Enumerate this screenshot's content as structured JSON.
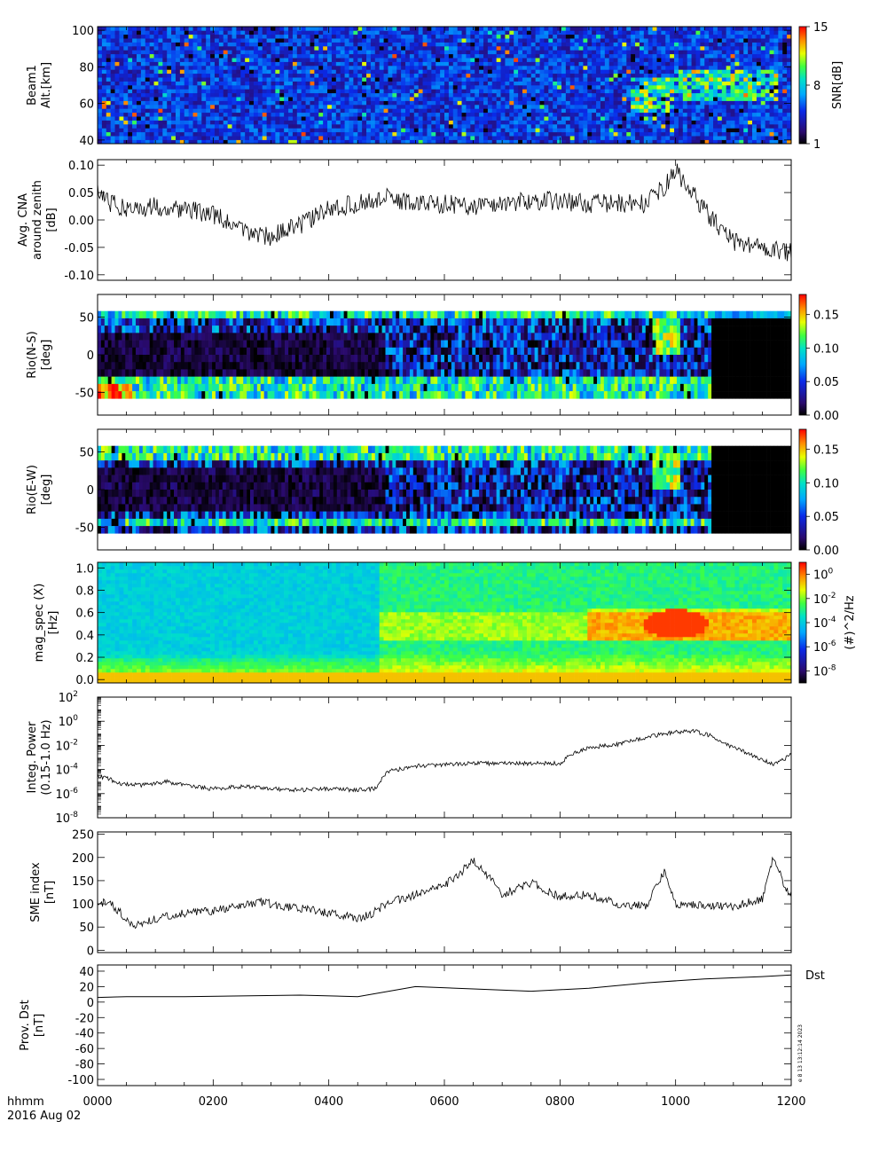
{
  "colors": {
    "heat_bg": "#3a3aa8",
    "rainbow": [
      "#000000",
      "#2a0a6e",
      "#0a2ae8",
      "#00a8ff",
      "#00e0c8",
      "#40ff40",
      "#e8ff00",
      "#ff9000",
      "#ff0000"
    ]
  },
  "time_axis": {
    "ticks": [
      "0000",
      "0200",
      "0400",
      "0600",
      "0800",
      "1000",
      "1200"
    ],
    "label": "hhmm",
    "date": "2016 Aug 02"
  },
  "stamp": "e 8 13 13:12:14 2023",
  "chart_data": [
    {
      "id": "beam1",
      "type": "heatmap",
      "ylabel": [
        "Beam1",
        "Alt.[km]"
      ],
      "ylim": [
        38,
        102
      ],
      "yticks": [
        "40",
        "60",
        "80",
        "100"
      ],
      "xlim": [
        0,
        1200
      ],
      "colorbar": {
        "label": "SNR[dB]",
        "min": 1,
        "max": 15,
        "ticks": [
          "1",
          "8",
          "15"
        ]
      },
      "features": [
        {
          "t_start": 920,
          "t_end": 1000,
          "alt_start": 54,
          "alt_end": 74,
          "description": "enhanced SNR patch"
        },
        {
          "t_start": 1000,
          "t_end": 1180,
          "alt_start": 62,
          "alt_end": 78,
          "description": "enhanced SNR band"
        }
      ]
    },
    {
      "id": "cna",
      "type": "line",
      "ylabel": [
        "Avg. CNA",
        "around zenith",
        "[dB]"
      ],
      "ylim": [
        -0.11,
        0.11
      ],
      "yticks": [
        "0.10",
        "0.05",
        "0.00",
        "-0.05",
        "-0.10"
      ],
      "xlim": [
        0,
        1200
      ],
      "x": [
        0,
        20,
        60,
        100,
        150,
        200,
        250,
        300,
        350,
        400,
        450,
        500,
        550,
        600,
        650,
        700,
        750,
        800,
        850,
        900,
        950,
        980,
        1000,
        1020,
        1050,
        1080,
        1100,
        1130,
        1160,
        1190,
        1200
      ],
      "y": [
        0.06,
        0.03,
        0.02,
        0.025,
        0.02,
        0.01,
        -0.02,
        -0.03,
        -0.01,
        0.02,
        0.03,
        0.04,
        0.03,
        0.03,
        0.025,
        0.03,
        0.035,
        0.035,
        0.03,
        0.03,
        0.03,
        0.06,
        0.09,
        0.06,
        0.02,
        -0.02,
        -0.04,
        -0.045,
        -0.05,
        -0.06,
        -0.06
      ]
    },
    {
      "id": "rio_ns",
      "type": "heatmap",
      "ylabel": [
        "Rio(N-S)",
        "[deg]"
      ],
      "ylim": [
        -80,
        80
      ],
      "yticks": [
        "50",
        "0",
        "-50"
      ],
      "xlim": [
        0,
        1200
      ],
      "colorbar": {
        "label": "",
        "min": 0,
        "max": 0.18,
        "ticks": [
          "0.00",
          "0.05",
          "0.10",
          "0.15"
        ]
      }
    },
    {
      "id": "rio_ew",
      "type": "heatmap",
      "ylabel": [
        "Rio(E-W)",
        "[deg]"
      ],
      "ylim": [
        -80,
        80
      ],
      "yticks": [
        "50",
        "0",
        "-50"
      ],
      "xlim": [
        0,
        1200
      ],
      "colorbar": {
        "label": "",
        "min": 0,
        "max": 0.18,
        "ticks": [
          "0.00",
          "0.05",
          "0.10",
          "0.15"
        ]
      }
    },
    {
      "id": "magspec",
      "type": "heatmap",
      "ylabel": [
        "mag_spec (X)",
        "[Hz]"
      ],
      "ylim": [
        -0.03,
        1.05
      ],
      "yticks": [
        "1.0",
        "0.8",
        "0.6",
        "0.4",
        "0.2",
        "0.0"
      ],
      "xlim": [
        0,
        1200
      ],
      "colorbar": {
        "label": "(#)^2/Hz",
        "scale": "log",
        "min_exp": -9,
        "max_exp": 1,
        "ticks": [
          "0",
          "-2",
          "-4",
          "-6",
          "-8"
        ]
      }
    },
    {
      "id": "power",
      "type": "line",
      "yscale": "log",
      "ylabel": [
        "Integ. Power",
        "(0.15-1.0 Hz)"
      ],
      "ylim_exp": [
        -8,
        2
      ],
      "yticks_exp": [
        "2",
        "0",
        "-2",
        "-4",
        "-6",
        "-8"
      ],
      "xlim": [
        0,
        1200
      ],
      "x": [
        0,
        20,
        40,
        80,
        120,
        160,
        200,
        250,
        300,
        350,
        400,
        450,
        480,
        500,
        550,
        600,
        650,
        700,
        750,
        800,
        820,
        850,
        900,
        950,
        1000,
        1030,
        1060,
        1090,
        1110,
        1140,
        1170,
        1200
      ],
      "y_exp": [
        -4.5,
        -4.8,
        -5.2,
        -5.3,
        -5.0,
        -5.4,
        -5.6,
        -5.4,
        -5.6,
        -5.7,
        -5.6,
        -5.7,
        -5.6,
        -4.2,
        -3.7,
        -3.6,
        -3.5,
        -3.5,
        -3.5,
        -3.5,
        -2.7,
        -2.2,
        -1.9,
        -1.3,
        -0.9,
        -0.8,
        -1.2,
        -2.0,
        -2.3,
        -3.0,
        -3.6,
        -2.8
      ]
    },
    {
      "id": "sme",
      "type": "line",
      "ylabel": [
        "SME index",
        "[nT]"
      ],
      "ylim": [
        -5,
        255
      ],
      "yticks": [
        "250",
        "200",
        "150",
        "100",
        "50",
        "0"
      ],
      "xlim": [
        0,
        1200
      ],
      "x": [
        0,
        20,
        40,
        60,
        80,
        120,
        160,
        200,
        250,
        280,
        320,
        360,
        400,
        450,
        470,
        500,
        550,
        600,
        630,
        650,
        680,
        700,
        750,
        800,
        850,
        900,
        950,
        980,
        1000,
        1050,
        1100,
        1150,
        1170,
        1180,
        1190,
        1200
      ],
      "y": [
        100,
        105,
        80,
        55,
        60,
        75,
        80,
        85,
        95,
        105,
        95,
        90,
        80,
        70,
        75,
        100,
        120,
        140,
        170,
        195,
        155,
        120,
        145,
        115,
        120,
        100,
        95,
        170,
        100,
        95,
        95,
        110,
        205,
        170,
        130,
        120
      ]
    },
    {
      "id": "dst",
      "type": "line",
      "ylabel": [
        "Prov. Dst",
        "[nT]"
      ],
      "series_label": "Dst",
      "ylim": [
        -108,
        48
      ],
      "yticks": [
        "40",
        "20",
        "0",
        "-20",
        "-40",
        "-60",
        "-80",
        "-100"
      ],
      "xlim": [
        0,
        1200
      ],
      "x": [
        0,
        50,
        150,
        250,
        350,
        450,
        550,
        650,
        750,
        850,
        950,
        1050,
        1150,
        1200
      ],
      "y": [
        6,
        7,
        7,
        8,
        9,
        7,
        20,
        17,
        14,
        18,
        25,
        30,
        33,
        35
      ]
    }
  ]
}
